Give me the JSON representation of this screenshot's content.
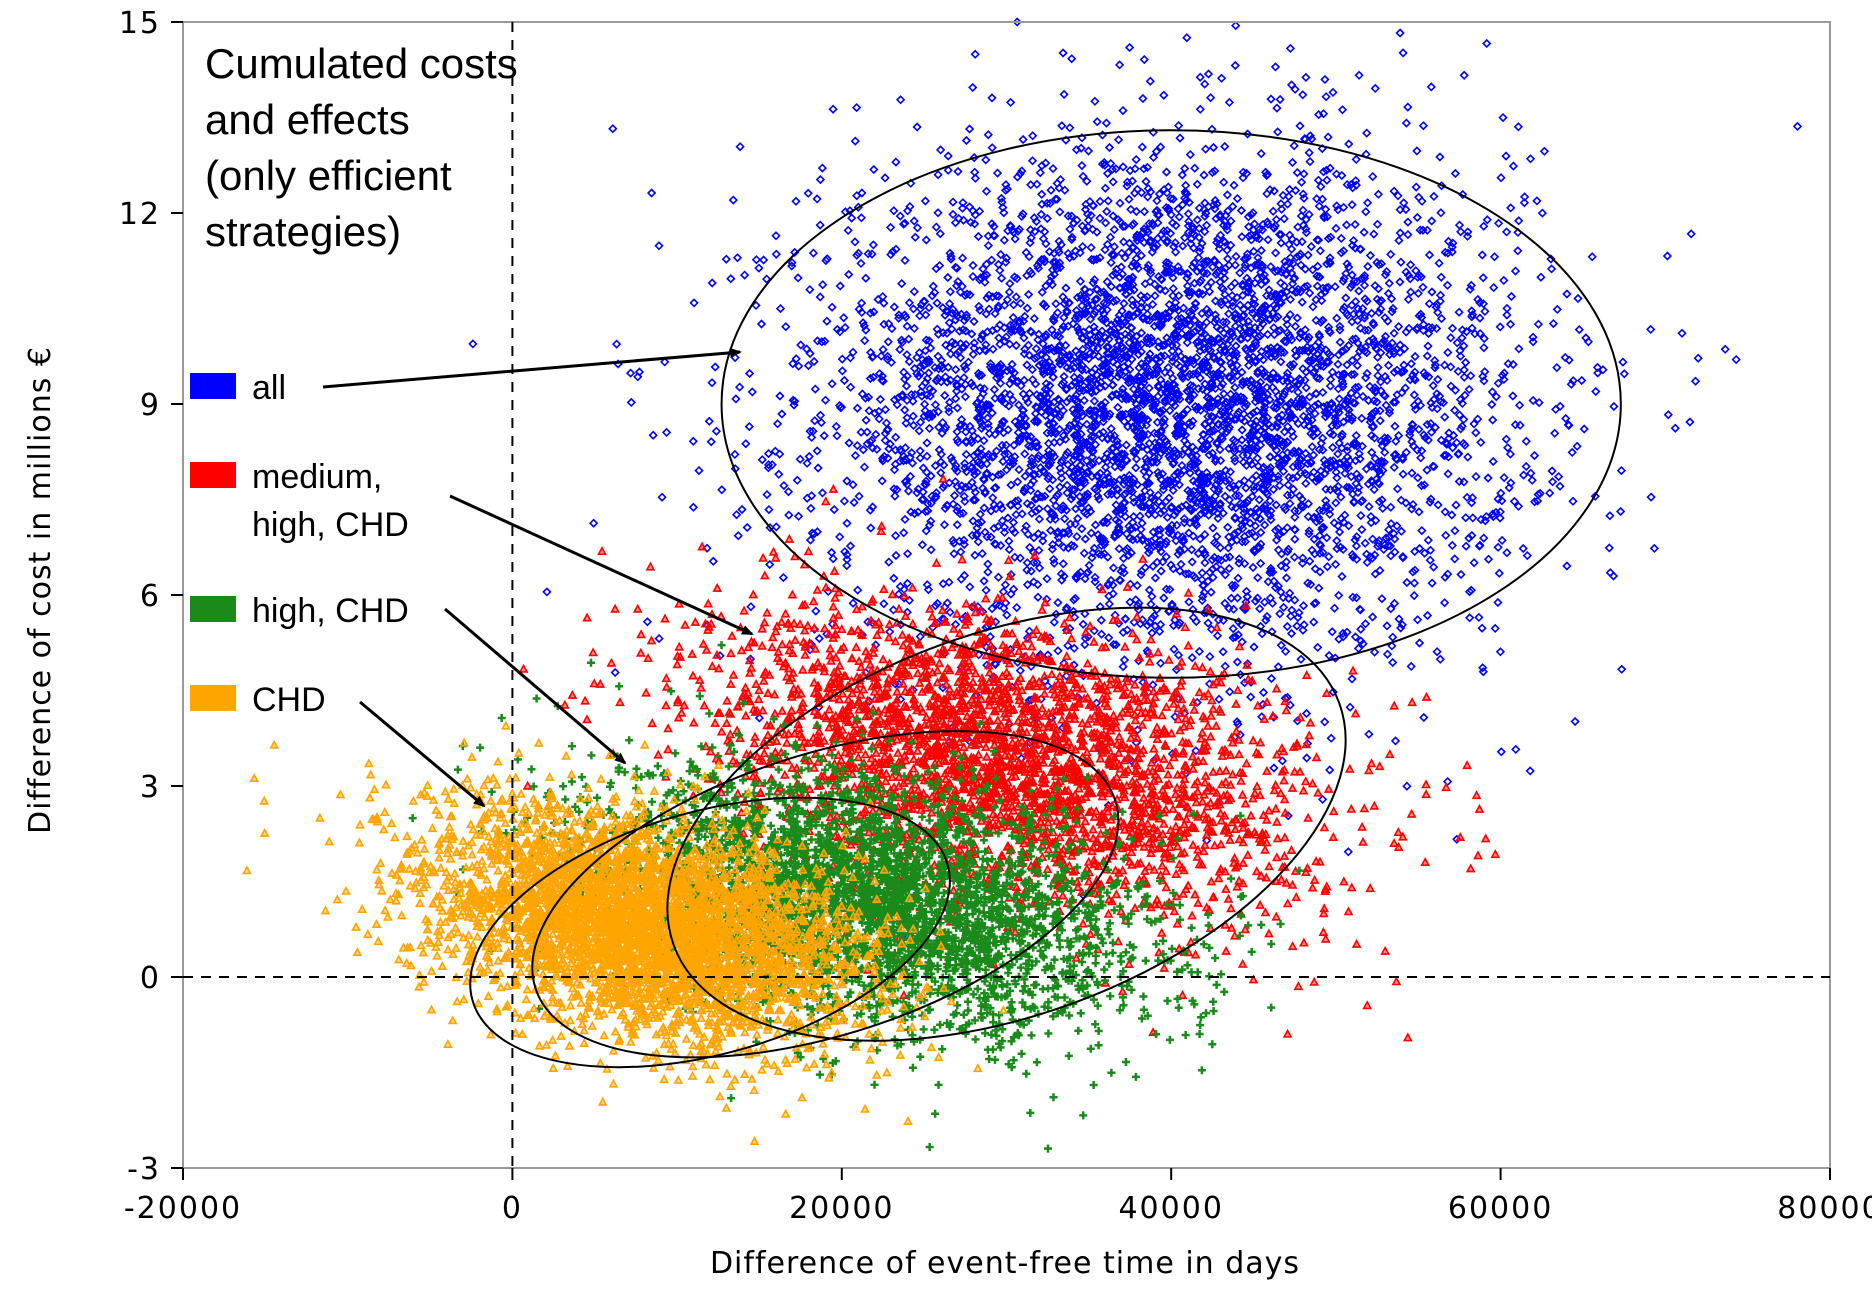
{
  "chart_data": {
    "type": "scatter",
    "title": "",
    "xlabel": "Difference of event-free time in days",
    "ylabel": "Difference of cost in millions €",
    "xlim": [
      -20000,
      80000
    ],
    "ylim": [
      -3,
      15
    ],
    "xticks": [
      "-20000",
      "0",
      "20000",
      "40000",
      "60000",
      "80000"
    ],
    "yticks": [
      "-3",
      "0",
      "3",
      "6",
      "9",
      "12",
      "15"
    ],
    "reference_lines": {
      "x": 0,
      "y": 0,
      "style": "dashed"
    },
    "annotation": [
      "Cumulated costs",
      "and effects",
      "(only efficient",
      "strategies)"
    ],
    "legend_placement": "left",
    "series": [
      {
        "name": "all",
        "color": "#0000ff",
        "marker": "diamond",
        "n_points": 5000,
        "center": [
          40000,
          9.0
        ],
        "spread": [
          10500,
          2.0
        ],
        "ellipse": {
          "center": [
            40000,
            9.0
          ],
          "radii": [
            27300,
            4.3
          ]
        }
      },
      {
        "name": "medium, high, CHD",
        "color": "#ff0000",
        "marker": "triangle",
        "n_points": 3000,
        "center": [
          30000,
          3.4
        ],
        "spread": [
          9000,
          1.2
        ],
        "ellipse": {
          "center": [
            30000,
            2.4
          ],
          "radii": [
            21500,
            3.0
          ],
          "rotation": -20
        }
      },
      {
        "name": "high, CHD",
        "color": "#1a8a1a",
        "marker": "plus",
        "n_points": 3500,
        "center": [
          22000,
          1.2
        ],
        "spread": [
          8000,
          1.0
        ],
        "ellipse": {
          "center": [
            19000,
            1.3
          ],
          "radii": [
            18500,
            2.2
          ],
          "rotation": -18
        }
      },
      {
        "name": "CHD",
        "color": "#ffa500",
        "marker": "triangle",
        "n_points": 4000,
        "center": [
          8000,
          0.8
        ],
        "spread": [
          6500,
          0.9
        ],
        "ellipse": {
          "center": [
            12000,
            0.7
          ],
          "radii": [
            15000,
            1.9
          ],
          "rotation": -16
        }
      }
    ]
  }
}
